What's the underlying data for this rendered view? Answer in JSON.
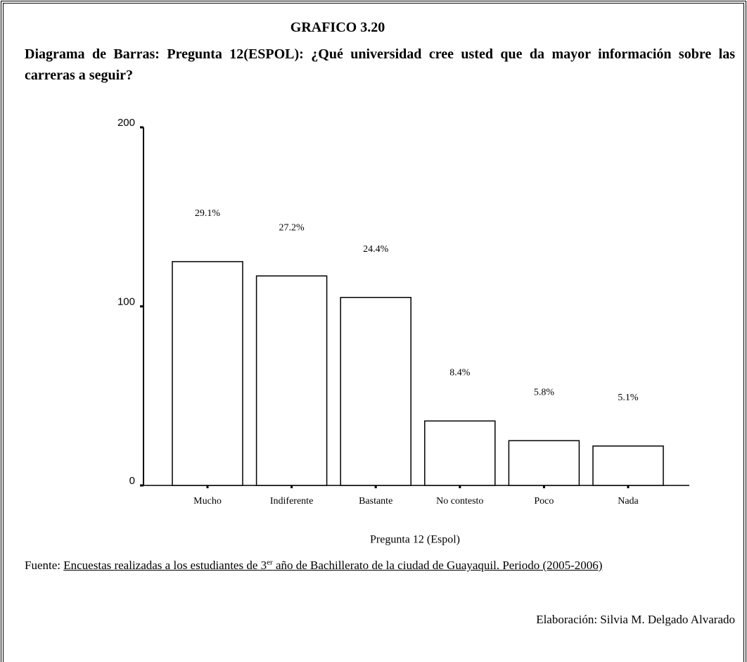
{
  "header": {
    "title": "GRAFICO 3.20",
    "subtitle": "Diagrama de Barras: Pregunta 12(ESPOL): ¿Qué universidad cree usted que da mayor información sobre las carreras a seguir?"
  },
  "chart_data": {
    "type": "bar",
    "categories": [
      "Mucho",
      "Indiferente",
      "Bastante",
      "No contesto",
      "Poco",
      "Nada"
    ],
    "values": [
      125,
      117,
      105,
      36,
      25,
      22
    ],
    "data_labels": [
      "29.1%",
      "27.2%",
      "24.4%",
      "8.4%",
      "5.8%",
      "5.1%"
    ],
    "color": "#ffffff",
    "ylim": [
      0,
      200
    ],
    "yticks": [
      0,
      100,
      200
    ],
    "grid": false,
    "xlabel": "Pregunta 12 (Espol)"
  },
  "footer": {
    "source_label": "Fuente:",
    "source_text": "Encuestas realizadas a los estudiantes de 3",
    "source_sup": "er",
    "source_text_end": " año de Bachillerato de la ciudad de Guayaquil. Periodo (2005-2006)",
    "credit": "Elaboración: Silvia M. Delgado Alvarado"
  }
}
